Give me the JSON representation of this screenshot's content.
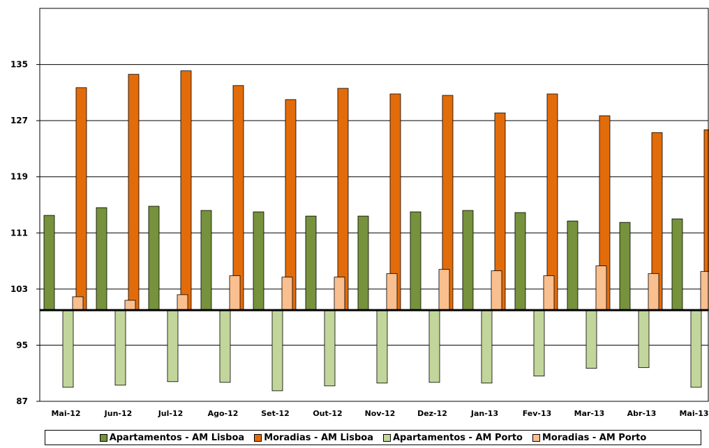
{
  "chart_data": {
    "type": "bar",
    "title": "",
    "xlabel": "",
    "ylabel": "",
    "baseline": 100,
    "ylim": [
      87,
      143
    ],
    "yticks": [
      87,
      95,
      103,
      111,
      119,
      127,
      135
    ],
    "grid": true,
    "legend_position": "bottom",
    "categories": [
      "Mai-12",
      "Jun-12",
      "Jul-12",
      "Ago-12",
      "Set-12",
      "Out-12",
      "Nov-12",
      "Dez-12",
      "Jan-13",
      "Fev-13",
      "Mar-13",
      "Abr-13",
      "Mai-13"
    ],
    "series": [
      {
        "name": "Apartamentos - AM Lisboa",
        "color": "#76923c",
        "values": [
          113.5,
          114.6,
          114.8,
          114.2,
          114.0,
          113.4,
          113.4,
          114.0,
          114.2,
          113.9,
          112.7,
          112.5,
          113.0
        ]
      },
      {
        "name": "Moradias - AM Lisboa",
        "color": "#e36c0a",
        "values": [
          131.7,
          133.6,
          134.1,
          132.0,
          130.0,
          131.6,
          130.8,
          130.6,
          128.1,
          130.8,
          127.7,
          125.3,
          125.7
        ]
      },
      {
        "name": "Apartamentos - AM Porto",
        "color": "#c2d69b",
        "values": [
          89.0,
          89.3,
          89.8,
          89.7,
          88.5,
          89.2,
          89.6,
          89.7,
          89.6,
          90.6,
          91.7,
          91.8,
          89.0
        ]
      },
      {
        "name": "Moradias - AM Porto",
        "color": "#fabf8f",
        "values": [
          101.9,
          101.4,
          102.2,
          104.9,
          104.7,
          104.7,
          105.2,
          105.8,
          105.6,
          104.9,
          106.3,
          105.2,
          105.5
        ]
      }
    ]
  }
}
